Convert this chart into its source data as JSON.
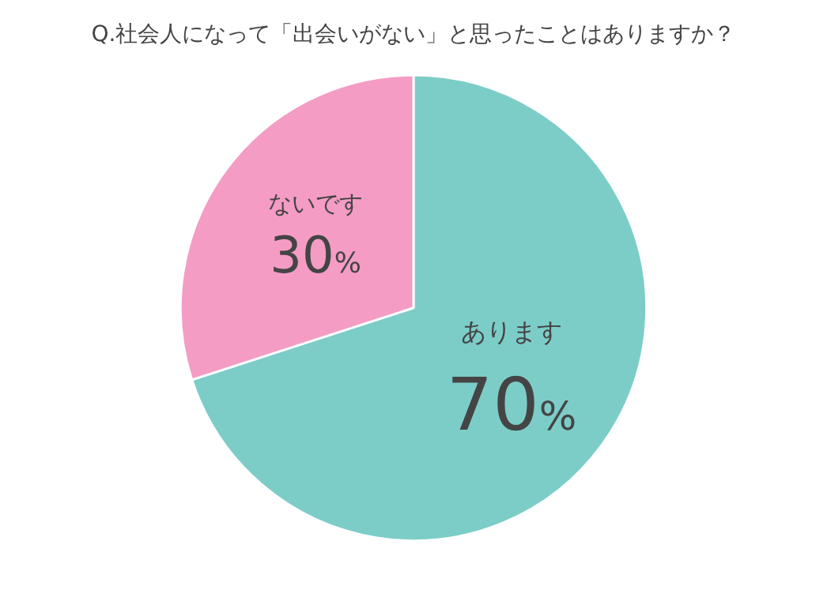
{
  "chart_data": {
    "type": "pie",
    "title": "Q.社会人になって「出会いがない」と思ったことはありますか？",
    "categories": [
      "あります",
      "ないです"
    ],
    "values": [
      70,
      30
    ],
    "colors": [
      "#7ccdc8",
      "#f49cc4"
    ],
    "value_labels": [
      "70%",
      "30%"
    ],
    "legend": false
  }
}
